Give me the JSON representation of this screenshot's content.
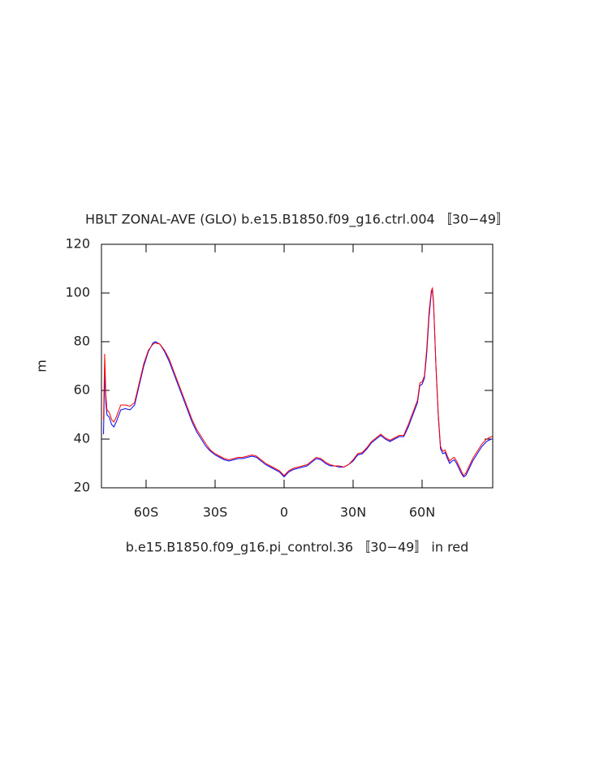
{
  "chart_data": {
    "type": "line",
    "title": "HBLT ZONAL-AVE (GLO) b.e15.B1850.f09_g16.ctrl.004 〚30−49〛",
    "xlabel": "b.e15.B1850.f09_g16.pi_control.36 〚30−49〛 in red",
    "ylabel": "m",
    "x": [
      -78.5,
      -78,
      -77.5,
      -77,
      -76,
      -75,
      -74,
      -73,
      -71,
      -69,
      -67,
      -65,
      -63,
      -61,
      -59,
      -57,
      -56,
      -54,
      -52,
      -50,
      -48,
      -46,
      -44,
      -42,
      -40,
      -38,
      -36,
      -34,
      -32,
      -30,
      -28,
      -26,
      -24,
      -22,
      -20,
      -18,
      -16,
      -14,
      -12,
      -10,
      -8,
      -6,
      -4,
      -2,
      0,
      2,
      4,
      6,
      8,
      10,
      12,
      14,
      16,
      18,
      20,
      22,
      24,
      26,
      28,
      30,
      32,
      34,
      36,
      38,
      40,
      42,
      44,
      46,
      48,
      50,
      52,
      54,
      56,
      58,
      59,
      60,
      61,
      62,
      63,
      64,
      64.5,
      65,
      66,
      67,
      68,
      69,
      70,
      71,
      72,
      73,
      74,
      75,
      76,
      77,
      78,
      79,
      80,
      82,
      84,
      86,
      88,
      90,
      90.5
    ],
    "series": [
      {
        "color": "#0000ff",
        "values": [
          42,
          68,
          55,
          50,
          49,
          46,
          45,
          47,
          52,
          52.5,
          52,
          54,
          62,
          70,
          76,
          79.5,
          80,
          79,
          76,
          72,
          67,
          62,
          57,
          52,
          47,
          43,
          40,
          37,
          35,
          33.5,
          32.5,
          31.5,
          31,
          31.5,
          32,
          32,
          32.5,
          33,
          32.5,
          31,
          29.5,
          28.5,
          27.5,
          26.5,
          24.5,
          26.5,
          27.5,
          28,
          28.5,
          29,
          30.5,
          32,
          31.5,
          30,
          29,
          29,
          28.5,
          28.5,
          29.5,
          31,
          33.5,
          34,
          36,
          38.5,
          40,
          41.5,
          40,
          39,
          40,
          41,
          41,
          45,
          50,
          55,
          62,
          62.5,
          65,
          75,
          90,
          100,
          101,
          95,
          70,
          50,
          36,
          34,
          34.5,
          32,
          30,
          31,
          31.5,
          30,
          28,
          26,
          24.5,
          25,
          27,
          31,
          34,
          37,
          39,
          40,
          40
        ]
      },
      {
        "color": "#ff0000",
        "values": [
          48,
          75,
          58,
          52,
          51,
          48,
          47,
          49,
          54,
          54,
          53.5,
          55,
          63,
          71,
          76.5,
          79,
          79.5,
          79,
          76.5,
          73,
          68,
          63,
          58,
          53,
          48,
          44,
          41,
          38,
          35.5,
          34,
          33,
          32,
          31.5,
          32,
          32.5,
          32.5,
          33,
          33.5,
          33,
          31.5,
          30,
          29,
          28,
          27,
          25,
          27,
          28,
          28.5,
          29,
          29.5,
          31,
          32.5,
          32,
          30.5,
          29.5,
          29,
          29,
          28.5,
          29.5,
          31.5,
          34,
          34.5,
          36.5,
          39,
          40.5,
          42,
          40.5,
          39.5,
          40.5,
          41.5,
          41.5,
          46,
          51,
          56,
          63,
          63.5,
          66,
          77,
          92,
          101,
          102,
          96,
          71,
          51,
          37,
          35,
          35.5,
          33,
          31,
          32,
          32.5,
          31,
          29,
          27,
          25,
          26,
          28,
          32,
          35,
          38,
          40,
          41,
          41
        ]
      }
    ],
    "xlim": [
      -79.4,
      90.7
    ],
    "xticks": [
      {
        "value": -60,
        "label": "60S"
      },
      {
        "value": -30,
        "label": "30S"
      },
      0,
      {
        "value": 30,
        "label": "30N"
      },
      {
        "value": 60,
        "label": "60N"
      }
    ],
    "ylim": [
      20,
      120
    ],
    "yticks": [
      20,
      40,
      60,
      80,
      100,
      120
    ]
  }
}
